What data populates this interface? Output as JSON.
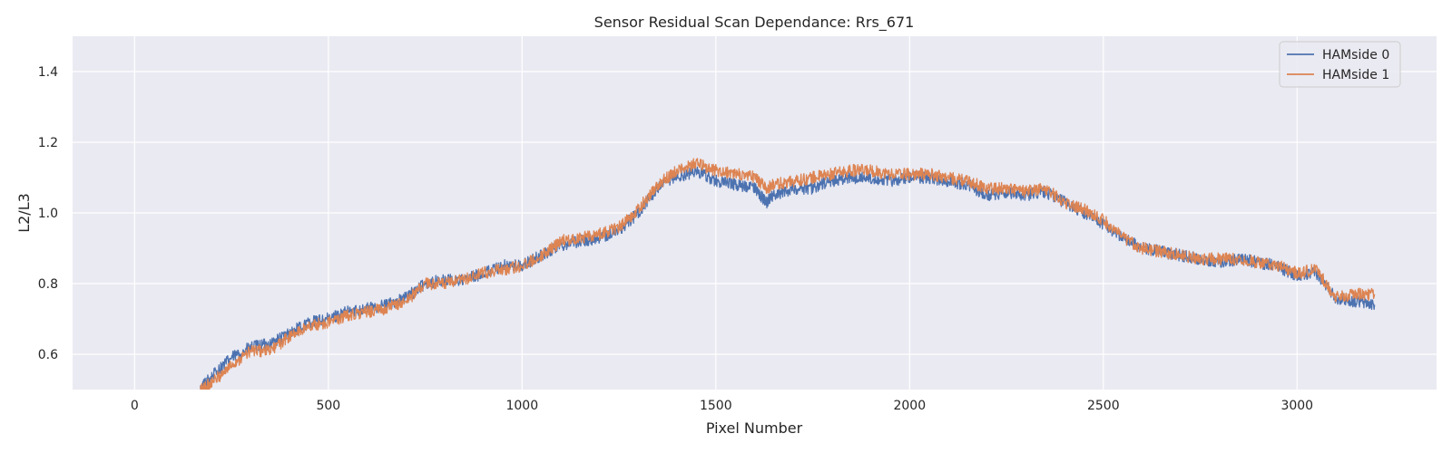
{
  "chart_data": {
    "type": "line",
    "title": "Sensor Residual Scan Dependance: Rrs_671",
    "xlabel": "Pixel Number",
    "ylabel": "L2/L3",
    "xlim": [
      -160,
      3360
    ],
    "ylim": [
      0.5,
      1.5
    ],
    "xticks": [
      0,
      500,
      1000,
      1500,
      2000,
      2500,
      3000
    ],
    "yticks": [
      0.6,
      0.8,
      1.0,
      1.2,
      1.4
    ],
    "ytick_labels": [
      "0.6",
      "0.8",
      "1.0",
      "1.2",
      "1.4"
    ],
    "grid": true,
    "legend_position": "top-right",
    "x_range": [
      170,
      3200
    ],
    "series": [
      {
        "name": "HAMside 0",
        "color": "#4c72b0",
        "x": [
          170,
          200,
          250,
          300,
          350,
          400,
          450,
          500,
          550,
          600,
          650,
          700,
          750,
          800,
          850,
          900,
          950,
          1000,
          1050,
          1100,
          1150,
          1200,
          1250,
          1300,
          1350,
          1400,
          1450,
          1500,
          1550,
          1600,
          1630,
          1650,
          1700,
          1750,
          1800,
          1850,
          1900,
          1950,
          2000,
          2050,
          2100,
          2150,
          2200,
          2250,
          2300,
          2350,
          2400,
          2450,
          2500,
          2550,
          2600,
          2650,
          2700,
          2750,
          2800,
          2850,
          2900,
          2950,
          3000,
          3050,
          3100,
          3150,
          3200
        ],
        "y": [
          0.5,
          0.54,
          0.59,
          0.62,
          0.63,
          0.66,
          0.69,
          0.7,
          0.72,
          0.73,
          0.74,
          0.76,
          0.8,
          0.81,
          0.81,
          0.83,
          0.85,
          0.85,
          0.88,
          0.91,
          0.92,
          0.93,
          0.95,
          1.0,
          1.07,
          1.1,
          1.12,
          1.09,
          1.08,
          1.07,
          1.03,
          1.05,
          1.07,
          1.07,
          1.09,
          1.1,
          1.1,
          1.09,
          1.1,
          1.1,
          1.09,
          1.08,
          1.05,
          1.06,
          1.05,
          1.06,
          1.03,
          1.0,
          0.97,
          0.93,
          0.9,
          0.89,
          0.88,
          0.87,
          0.86,
          0.87,
          0.86,
          0.85,
          0.82,
          0.83,
          0.76,
          0.75,
          0.74
        ]
      },
      {
        "name": "HAMside 1",
        "color": "#dd8452",
        "x": [
          170,
          200,
          250,
          300,
          350,
          400,
          450,
          500,
          550,
          600,
          650,
          700,
          750,
          800,
          850,
          900,
          950,
          1000,
          1050,
          1100,
          1150,
          1200,
          1250,
          1300,
          1350,
          1400,
          1450,
          1500,
          1550,
          1600,
          1630,
          1650,
          1700,
          1750,
          1800,
          1850,
          1900,
          1950,
          2000,
          2050,
          2100,
          2150,
          2200,
          2250,
          2300,
          2350,
          2400,
          2450,
          2500,
          2550,
          2600,
          2650,
          2700,
          2750,
          2800,
          2850,
          2900,
          2950,
          3000,
          3050,
          3100,
          3150,
          3200
        ],
        "y": [
          0.5,
          0.52,
          0.57,
          0.61,
          0.61,
          0.65,
          0.68,
          0.69,
          0.71,
          0.72,
          0.73,
          0.75,
          0.8,
          0.8,
          0.81,
          0.83,
          0.84,
          0.85,
          0.88,
          0.92,
          0.93,
          0.94,
          0.96,
          1.01,
          1.08,
          1.12,
          1.14,
          1.12,
          1.11,
          1.1,
          1.07,
          1.08,
          1.09,
          1.1,
          1.11,
          1.12,
          1.12,
          1.11,
          1.11,
          1.11,
          1.1,
          1.09,
          1.07,
          1.07,
          1.06,
          1.07,
          1.03,
          1.01,
          0.98,
          0.93,
          0.9,
          0.89,
          0.88,
          0.87,
          0.87,
          0.87,
          0.86,
          0.85,
          0.83,
          0.84,
          0.76,
          0.77,
          0.77
        ]
      }
    ]
  }
}
